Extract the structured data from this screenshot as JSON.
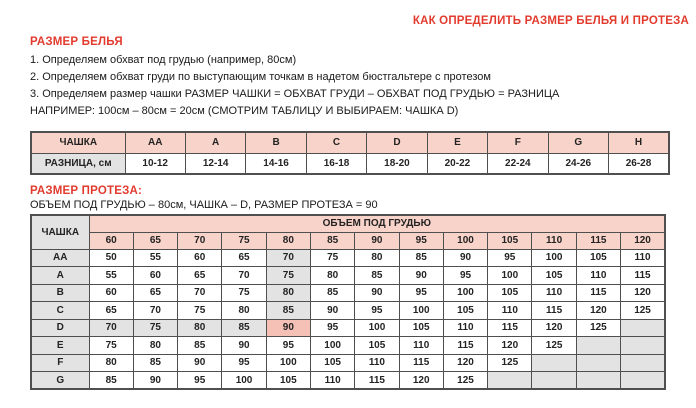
{
  "title": "КАК ОПРЕДЕЛИТЬ РАЗМЕР БЕЛЬЯ И ПРОТЕЗА",
  "underwear": {
    "heading": "РАЗМЕР БЕЛЬЯ",
    "steps": [
      "1. Определяем обхват под грудью (например, 80см)",
      "2. Определяем обхват груди по выступающим точкам в надетом бюстгальтере с протезом",
      "3. Определяем размер чашки  РАЗМЕР ЧАШКИ = ОБХВАТ ГРУДИ – ОБХВАТ ПОД ГРУДЬЮ = РАЗНИЦА",
      "НАПРИМЕР: 100см – 80см = 20см (СМОТРИМ ТАБЛИЦУ И ВЫБИРАЕМ: ЧАШКА D)"
    ]
  },
  "cup_table": {
    "corner_label": "ЧАШКА",
    "row_label": "РАЗНИЦА, см",
    "cups": [
      "AA",
      "A",
      "B",
      "C",
      "D",
      "E",
      "F",
      "G",
      "H"
    ],
    "ranges": [
      "10-12",
      "12-14",
      "14-16",
      "16-18",
      "18-20",
      "20-22",
      "22-24",
      "24-26",
      "26-28"
    ]
  },
  "prosthesis": {
    "heading": "РАЗМЕР ПРОТЕЗА:",
    "example": "ОБЪЕМ ПОД ГРУДЬЮ – 80см, ЧАШКА – D, РАЗМЕР ПРОТЕЗА = 90"
  },
  "size_table": {
    "corner_label": "ЧАШКА",
    "span_header": "ОБЪЕМ ПОД ГРУДЬЮ",
    "volumes": [
      "60",
      "65",
      "70",
      "75",
      "80",
      "85",
      "90",
      "95",
      "100",
      "105",
      "110",
      "115",
      "120"
    ],
    "rows": [
      {
        "cup": "AA",
        "values": [
          "50",
          "55",
          "60",
          "65",
          "70",
          "75",
          "80",
          "85",
          "90",
          "95",
          "100",
          "105",
          "110"
        ]
      },
      {
        "cup": "A",
        "values": [
          "55",
          "60",
          "65",
          "70",
          "75",
          "80",
          "85",
          "90",
          "95",
          "100",
          "105",
          "110",
          "115"
        ]
      },
      {
        "cup": "B",
        "values": [
          "60",
          "65",
          "70",
          "75",
          "80",
          "85",
          "90",
          "95",
          "100",
          "105",
          "110",
          "115",
          "120"
        ]
      },
      {
        "cup": "C",
        "values": [
          "65",
          "70",
          "75",
          "80",
          "85",
          "90",
          "95",
          "100",
          "105",
          "110",
          "115",
          "120",
          "125"
        ]
      },
      {
        "cup": "D",
        "values": [
          "70",
          "75",
          "80",
          "85",
          "90",
          "95",
          "100",
          "105",
          "110",
          "115",
          "120",
          "125",
          null
        ]
      },
      {
        "cup": "E",
        "values": [
          "75",
          "80",
          "85",
          "90",
          "95",
          "100",
          "105",
          "110",
          "115",
          "120",
          "125",
          null,
          null
        ]
      },
      {
        "cup": "F",
        "values": [
          "80",
          "85",
          "90",
          "95",
          "100",
          "105",
          "110",
          "115",
          "120",
          "125",
          null,
          null,
          null
        ]
      },
      {
        "cup": "G",
        "values": [
          "85",
          "90",
          "95",
          "100",
          "105",
          "110",
          "115",
          "120",
          "125",
          null,
          null,
          null,
          null
        ]
      }
    ],
    "highlight": {
      "row": "D",
      "column": "80",
      "result": "90"
    }
  },
  "colors": {
    "accent_red": "#e23b2e",
    "header_pink": "#f8d3c9",
    "highlight_pink": "#f5c0b6",
    "highlight_gray": "#e3e3e3",
    "border": "#4f4f4f"
  }
}
